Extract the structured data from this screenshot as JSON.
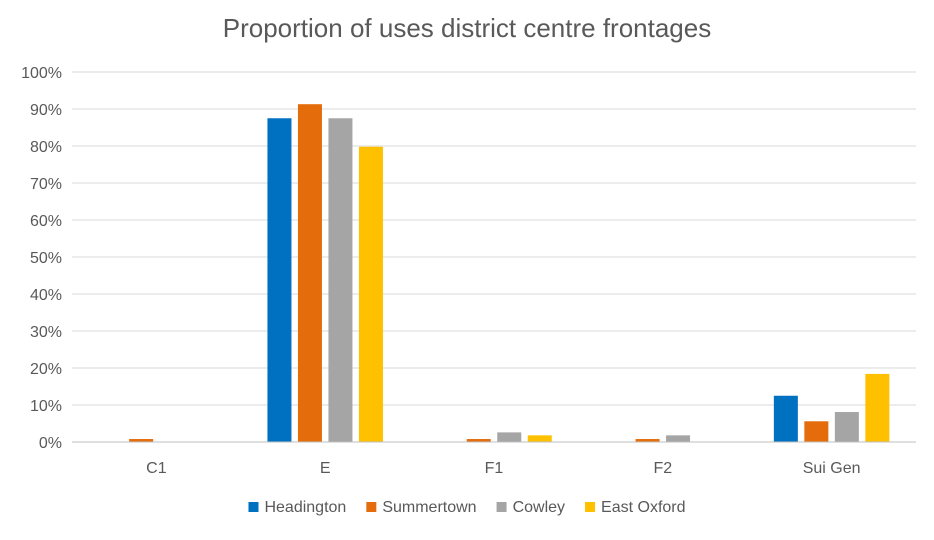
{
  "chart_data": {
    "type": "bar",
    "title": "Proportion of uses district centre frontages",
    "categories": [
      "C1",
      "E",
      "F1",
      "F2",
      "Sui Gen"
    ],
    "y_ticks": [
      "0%",
      "10%",
      "20%",
      "30%",
      "40%",
      "50%",
      "60%",
      "70%",
      "80%",
      "90%",
      "100%"
    ],
    "ylim": [
      0,
      100
    ],
    "grid": true,
    "legend_position": "bottom",
    "series": [
      {
        "name": "Headington",
        "color": "#0070C0",
        "values": [
          0,
          87.5,
          0,
          0,
          12.5
        ]
      },
      {
        "name": "Summertown",
        "color": "#E46C0A",
        "values": [
          0.8,
          91.3,
          0.8,
          0.8,
          5.6
        ]
      },
      {
        "name": "Cowley",
        "color": "#A5A5A5",
        "values": [
          0,
          87.5,
          2.6,
          1.8,
          8.1
        ]
      },
      {
        "name": "East Oxford",
        "color": "#FFC000",
        "values": [
          0,
          79.8,
          1.8,
          0,
          18.4
        ]
      }
    ]
  }
}
